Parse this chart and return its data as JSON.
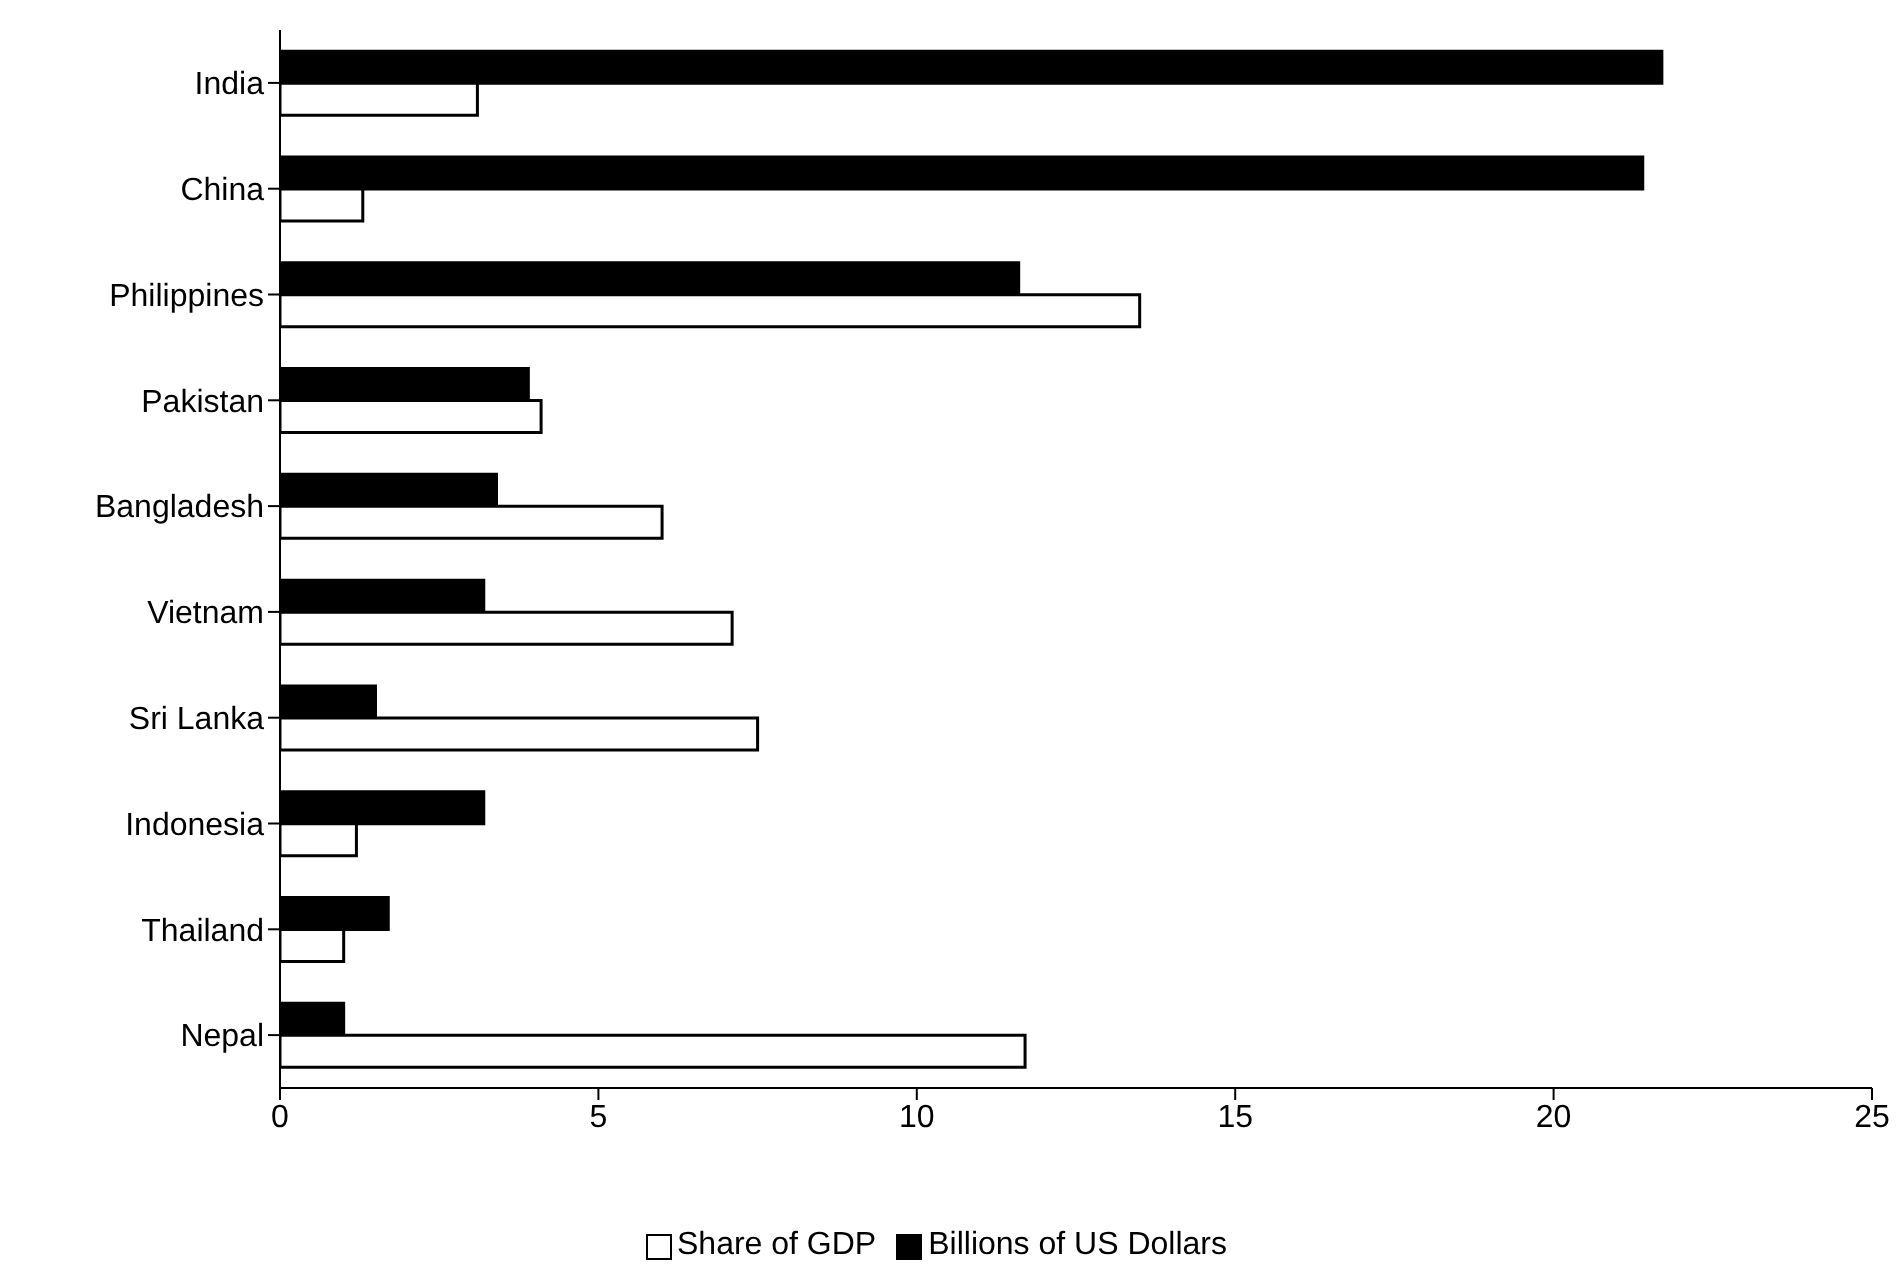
{
  "chart_data": {
    "type": "bar",
    "orientation": "horizontal",
    "categories": [
      "India",
      "China",
      "Philippines",
      "Pakistan",
      "Bangladesh",
      "Vietnam",
      "Sri Lanka",
      "Indonesia",
      "Thailand",
      "Nepal"
    ],
    "series": [
      {
        "name": "Share of GDP",
        "color": "#ffffff",
        "values": [
          3.1,
          1.3,
          13.5,
          4.1,
          6.0,
          7.1,
          7.5,
          1.2,
          1.0,
          11.7
        ]
      },
      {
        "name": "Billions of US Dollars",
        "color": "#000000",
        "values": [
          21.7,
          21.4,
          11.6,
          3.9,
          3.4,
          3.2,
          1.5,
          3.2,
          1.7,
          1.0
        ]
      }
    ],
    "xlim": [
      0,
      25
    ],
    "xticks": [
      0,
      5,
      10,
      15,
      20,
      25
    ],
    "grid": false,
    "legend": "bottom"
  }
}
